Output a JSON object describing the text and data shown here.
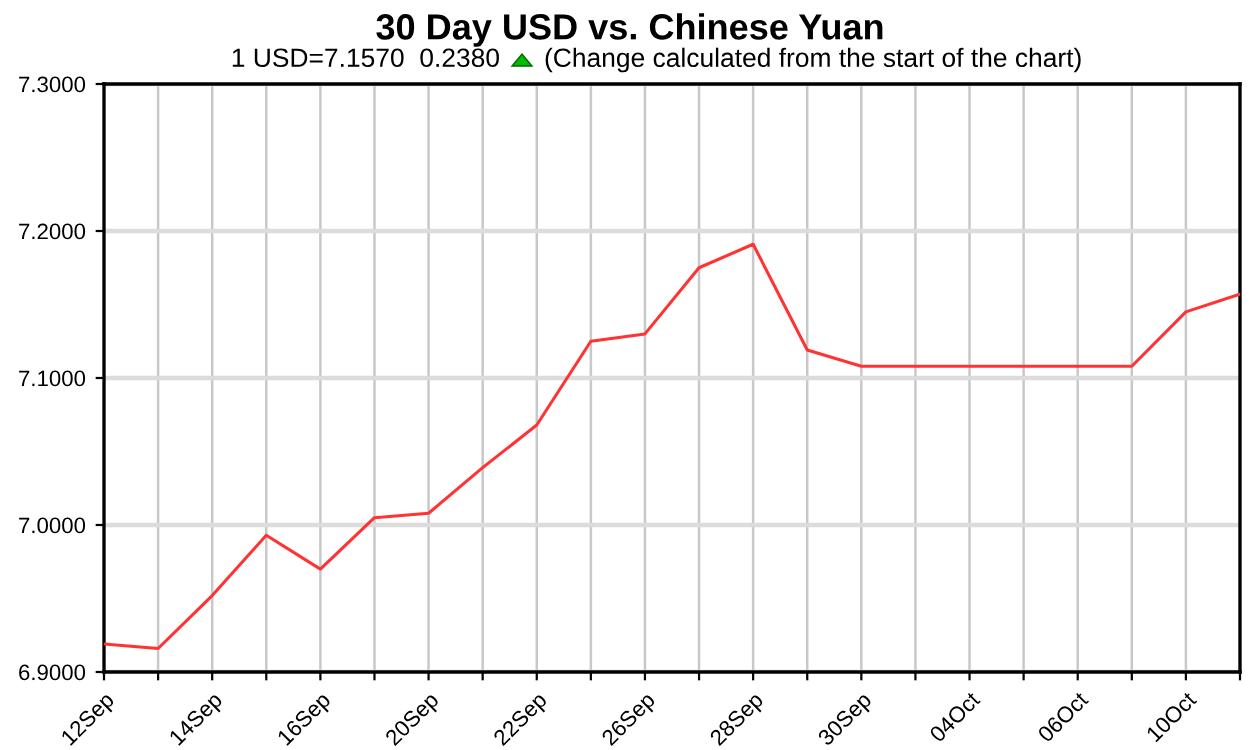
{
  "chart_data": {
    "type": "line",
    "title": "30 Day USD vs. Chinese Yuan",
    "subtitle": "1 USD=7.1570  0.2380",
    "annotations": [
      "(Change calculated from the start of the chart)"
    ],
    "categories": [
      "12Sep",
      null,
      "14Sep",
      null,
      "16Sep",
      null,
      "20Sep",
      null,
      "22Sep",
      null,
      "26Sep",
      null,
      "28Sep",
      null,
      "30Sep",
      null,
      "04Oct",
      null,
      "06Oct",
      null,
      "10Oct",
      null
    ],
    "series": [
      {
        "color": "#ff3333",
        "values": [
          6.919,
          6.916,
          6.952,
          6.993,
          6.97,
          7.005,
          7.008,
          7.039,
          7.068,
          7.125,
          7.13,
          7.175,
          7.191,
          7.119,
          7.108,
          7.108,
          7.108,
          7.108,
          7.108,
          7.108,
          7.145,
          7.157
        ]
      }
    ],
    "ylim": [
      6.9,
      7.3
    ],
    "yticks": [
      {
        "value": 6.9,
        "label": "6.9000"
      },
      {
        "value": 7.0,
        "label": "7.0000"
      },
      {
        "value": 7.1,
        "label": "7.1000"
      },
      {
        "value": 7.2,
        "label": "7.2000"
      },
      {
        "value": 7.3,
        "label": "7.3000"
      }
    ],
    "grid": true,
    "marker": "none",
    "line_style": "solid",
    "legend": false
  }
}
